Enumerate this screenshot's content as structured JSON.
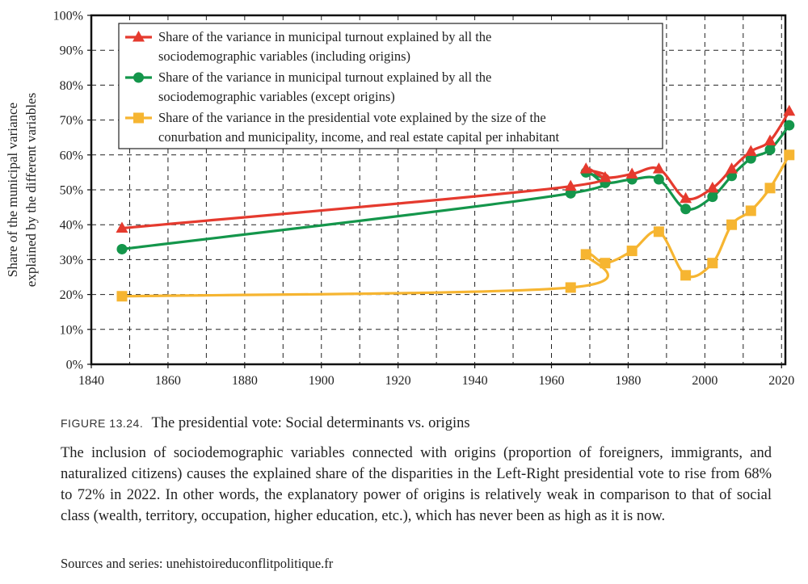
{
  "chart_data": {
    "type": "line",
    "ylabel_lines": [
      "Share of the municipal variance",
      "explained by the different variables"
    ],
    "xlim": [
      1840,
      2021
    ],
    "ylim": [
      0,
      100
    ],
    "xticks": [
      1840,
      1860,
      1880,
      1900,
      1920,
      1940,
      1960,
      1980,
      2000,
      2020
    ],
    "yticks": [
      0,
      10,
      20,
      30,
      40,
      50,
      60,
      70,
      80,
      90,
      100
    ],
    "yticklabels": [
      "0%",
      "10%",
      "20%",
      "30%",
      "40%",
      "50%",
      "60%",
      "70%",
      "80%",
      "90%",
      "100%"
    ],
    "xgrid": [
      1850,
      1860,
      1870,
      1880,
      1890,
      1900,
      1910,
      1920,
      1930,
      1940,
      1950,
      1960,
      1970,
      1980,
      1990,
      2000,
      2010,
      2020
    ],
    "grid": true,
    "legend_position": "top-left",
    "series": [
      {
        "name_lines": [
          "Share of the variance in municipal turnout explained by all the",
          "sociodemographic variables (including origins)"
        ],
        "color": "#e53a2e",
        "marker": "triangle",
        "x": [
          1848,
          1965,
          1969,
          1974,
          1981,
          1988,
          1995,
          2002,
          2007,
          2012,
          2017,
          2022
        ],
        "y": [
          39,
          51,
          56,
          53.5,
          54.5,
          56,
          47.5,
          50.5,
          56,
          61,
          64,
          72.5
        ]
      },
      {
        "name_lines": [
          "Share of the variance in municipal turnout explained by all the",
          "sociodemographic variables (except origins)"
        ],
        "color": "#14964b",
        "marker": "circle",
        "x": [
          1848,
          1965,
          1969,
          1974,
          1981,
          1988,
          1995,
          2002,
          2007,
          2012,
          2017,
          2022
        ],
        "y": [
          33,
          49,
          55,
          52,
          53,
          53,
          44.5,
          48,
          54,
          59,
          61.5,
          68.5
        ]
      },
      {
        "name_lines": [
          "Share of the variance in the presidential vote explained by the size of the",
          "conurbation and municipality, income, and real estate capital per inhabitant"
        ],
        "color": "#f6b531",
        "marker": "square",
        "x": [
          1848,
          1965,
          1969,
          1974,
          1981,
          1988,
          1995,
          2002,
          2007,
          2012,
          2017,
          2022
        ],
        "y": [
          19.5,
          22,
          31.5,
          29,
          32.5,
          38,
          25.5,
          29,
          40,
          44,
          50.5,
          60
        ]
      }
    ]
  },
  "caption": {
    "figure_label": "FIGURE 13.24.",
    "title": "The presidential vote: Social determinants vs. origins",
    "description": "The inclusion of sociodemographic variables connected with origins (proportion of foreigners, immigrants, and naturalized citizens) causes the explained share of the disparities in the Left-Right presidential vote to rise from 68% to 72% in 2022. In other words, the explanatory power of origins is relatively weak in comparison to that of social class (wealth, territory, occupation, higher education, etc.), which has never been as high as it is now.",
    "source": "Sources and series: unehistoireduconflitpolitique.fr"
  }
}
